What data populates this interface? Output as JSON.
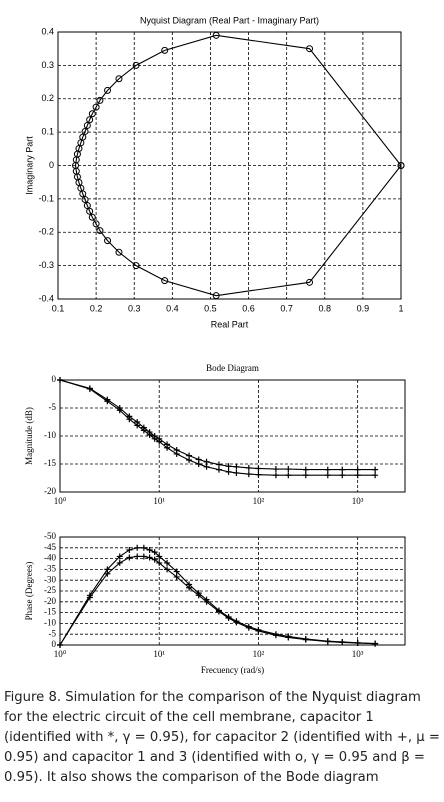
{
  "chart_data": [
    {
      "type": "line",
      "title": "Nyquist Diagram (Real Part - Imaginary Part)",
      "x_label": "Real Part",
      "y_label": "Imaginary Part",
      "marker": "circle",
      "grid": true,
      "color": "#000000",
      "xlim": [
        0.1,
        1
      ],
      "xticks": [
        0.1,
        0.2,
        0.3,
        0.4,
        0.5,
        0.6,
        0.7,
        0.8,
        0.9,
        1
      ],
      "ylim": [
        -0.4,
        0.4
      ],
      "yticks": [
        -0.4,
        -0.3,
        -0.2,
        -0.1,
        0,
        0.1,
        0.2,
        0.3,
        0.4
      ],
      "series": [
        {
          "color": "#000000",
          "x": [
            1,
            0.76,
            0.515,
            0.38,
            0.305,
            0.26,
            0.23,
            0.21,
            0.2,
            0.19,
            0.183,
            0.177,
            0.171,
            0.165,
            0.16,
            0.155,
            0.151,
            0.148,
            0.146,
            0.148,
            0.151,
            0.155,
            0.16,
            0.165,
            0.171,
            0.177,
            0.183,
            0.19,
            0.2,
            0.21,
            0.23,
            0.26,
            0.305,
            0.38,
            0.515,
            0.76,
            1
          ],
          "values": [
            0,
            0.35,
            0.39,
            0.345,
            0.3,
            0.26,
            0.225,
            0.195,
            0.175,
            0.155,
            0.137,
            0.12,
            0.102,
            0.085,
            0.068,
            0.051,
            0.034,
            0.017,
            0,
            -0.017,
            -0.034,
            -0.051,
            -0.068,
            -0.085,
            -0.102,
            -0.12,
            -0.137,
            -0.155,
            -0.175,
            -0.195,
            -0.225,
            -0.26,
            -0.3,
            -0.345,
            -0.39,
            -0.35,
            0
          ]
        }
      ]
    },
    {
      "type": "line",
      "title": "Bode Diagram",
      "y_label": "Magnitude (dB)",
      "xscale": "log",
      "marker": "plus",
      "grid": true,
      "xlim": [
        1,
        3000
      ],
      "xticks": [
        {
          "value": 1,
          "label": "10⁰"
        },
        {
          "value": 10,
          "label": "10¹"
        },
        {
          "value": 100,
          "label": "10²"
        },
        {
          "value": 1000,
          "label": "10³"
        }
      ],
      "ylim": [
        -20,
        0
      ],
      "yticks": [
        -20,
        -15,
        -10,
        -5,
        0
      ],
      "x": [
        1,
        2,
        3,
        4,
        5,
        6,
        7,
        8,
        9,
        10,
        12,
        15,
        20,
        25,
        30,
        40,
        50,
        60,
        80,
        100,
        150,
        200,
        300,
        500,
        700,
        1000,
        1500
      ],
      "series": [
        {
          "color": "#000000",
          "values": [
            0,
            -1.5,
            -3.5,
            -5,
            -6.5,
            -7.5,
            -8.5,
            -9.3,
            -10,
            -10.5,
            -11.5,
            -12.5,
            -13.5,
            -14.2,
            -14.6,
            -15.1,
            -15.4,
            -15.5,
            -15.7,
            -15.8,
            -15.9,
            -15.9,
            -16,
            -16,
            -16,
            -16,
            -16
          ]
        },
        {
          "color": "#000000",
          "values": [
            0,
            -1.6,
            -3.8,
            -5.4,
            -7,
            -8.1,
            -9,
            -9.8,
            -10.5,
            -11,
            -12.1,
            -13.2,
            -14.3,
            -15,
            -15.5,
            -16,
            -16.4,
            -16.6,
            -16.8,
            -16.9,
            -17,
            -17,
            -17,
            -17,
            -17,
            -17,
            -17
          ]
        }
      ]
    },
    {
      "type": "line",
      "x_label": "Frecuency (rad/s)",
      "y_label": "Phase (Degrees)",
      "xscale": "log",
      "marker": "plus",
      "grid": true,
      "xlim": [
        1,
        3000
      ],
      "xticks": [
        {
          "value": 1,
          "label": "10⁰"
        },
        {
          "value": 10,
          "label": "10¹"
        },
        {
          "value": 100,
          "label": "10²"
        },
        {
          "value": 1000,
          "label": "10³"
        }
      ],
      "ylim": [
        0,
        -50
      ],
      "yticks": [
        0,
        -5,
        -10,
        -15,
        -20,
        -25,
        -30,
        -35,
        -40,
        -45,
        -50
      ],
      "x": [
        1,
        2,
        3,
        4,
        5,
        6,
        7,
        8,
        9,
        10,
        12,
        15,
        20,
        25,
        30,
        40,
        50,
        60,
        80,
        100,
        150,
        200,
        300,
        500,
        700,
        1000,
        1500
      ],
      "series": [
        {
          "color": "#000000",
          "values": [
            0,
            -23,
            -35,
            -41,
            -44,
            -45,
            -45,
            -44,
            -43,
            -41,
            -38,
            -34,
            -28,
            -24,
            -21,
            -16,
            -13,
            -11,
            -8.5,
            -7,
            -5,
            -4,
            -2.8,
            -1.8,
            -1.4,
            -1,
            -0.7
          ]
        },
        {
          "color": "#000000",
          "values": [
            0,
            -22,
            -33,
            -38,
            -40.5,
            -41,
            -41,
            -40.5,
            -39.5,
            -38,
            -35,
            -31.5,
            -26.5,
            -23,
            -20,
            -15.5,
            -12.5,
            -10.5,
            -8,
            -6.5,
            -4.5,
            -3.5,
            -2.5,
            -1.6,
            -1.2,
            -0.9,
            -0.6
          ]
        }
      ]
    }
  ],
  "caption": "Figure 8. Simulation for the comparison of the Nyquist diagram for the electric circuit of the cell membrane, capacitor 1 (identified with *, γ = 0.95), for capacitor 2 (identified with +, μ = 0.95) and capacitor 1 and 3 (identified with o, γ = 0.95 and β = 0.95). It also shows the comparison of the Bode diagram"
}
